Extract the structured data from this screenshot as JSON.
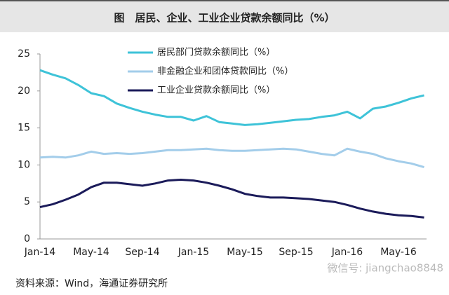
{
  "chart_data": {
    "type": "line",
    "title": "图　居民、企业、工业企业贷款余额同比（%）",
    "source": "资料来源：Wind，海通证券研究所",
    "watermark": "微信号: jiangchao8848",
    "categories": [
      "Jan-14",
      null,
      null,
      null,
      "May-14",
      null,
      null,
      null,
      "Sep-14",
      null,
      null,
      null,
      "Jan-15",
      null,
      null,
      null,
      "May-15",
      null,
      null,
      null,
      "Sep-15",
      null,
      null,
      null,
      "Jan-16",
      null,
      null,
      null,
      "May-16",
      null,
      null
    ],
    "series": [
      {
        "name": "居民部门贷款余额同比（%）",
        "color": "#3ec3d8",
        "values": [
          22.8,
          22.2,
          21.7,
          20.8,
          19.7,
          19.3,
          18.3,
          17.7,
          17.2,
          16.8,
          16.5,
          16.5,
          16.0,
          16.6,
          15.8,
          15.6,
          15.4,
          15.5,
          15.7,
          15.9,
          16.1,
          16.2,
          16.5,
          16.7,
          17.2,
          16.3,
          17.6,
          17.9,
          18.4,
          19.0,
          19.4
        ]
      },
      {
        "name": "非金融企业和团体贷款同比（%）",
        "color": "#a3cdea",
        "values": [
          11.0,
          11.1,
          11.0,
          11.3,
          11.8,
          11.5,
          11.6,
          11.5,
          11.6,
          11.8,
          12.0,
          12.0,
          12.1,
          12.2,
          12.0,
          11.9,
          11.9,
          12.0,
          12.1,
          12.2,
          12.1,
          11.8,
          11.5,
          11.3,
          12.2,
          11.8,
          11.5,
          10.9,
          10.5,
          10.2,
          9.7
        ]
      },
      {
        "name": "工业企业贷款余额同比（%）",
        "color": "#1b1b5a",
        "values": [
          4.3,
          4.7,
          5.3,
          6.0,
          7.0,
          7.6,
          7.6,
          7.4,
          7.2,
          7.5,
          7.9,
          8.0,
          7.9,
          7.6,
          7.2,
          6.7,
          6.1,
          5.8,
          5.6,
          5.6,
          5.5,
          5.4,
          5.2,
          5.0,
          4.6,
          4.1,
          3.7,
          3.4,
          3.2,
          3.1,
          2.9
        ]
      }
    ],
    "ylim": [
      0,
      25
    ],
    "yticks": [
      0,
      5,
      10,
      15,
      20,
      25
    ],
    "grid": false
  }
}
